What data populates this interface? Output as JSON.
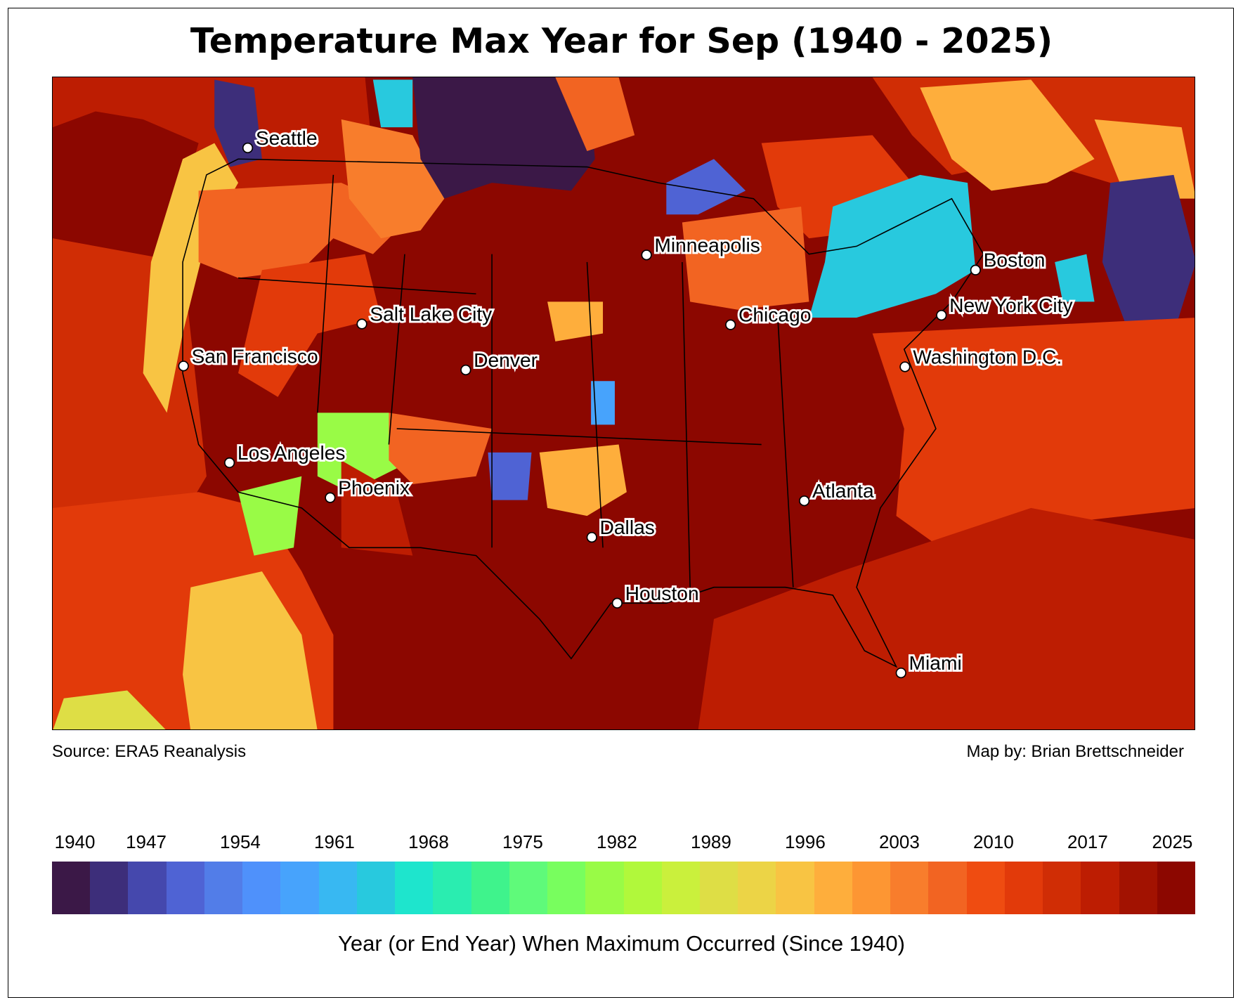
{
  "title": "Temperature Max Year for Sep (1940 - 2025)",
  "source": "Source: ERA5 Reanalysis",
  "credit": "Map by: Brian Brettschneider",
  "cities": [
    {
      "id": "seattle",
      "name": "Seattle"
    },
    {
      "id": "minneapolis",
      "name": "Minneapolis"
    },
    {
      "id": "boston",
      "name": "Boston"
    },
    {
      "id": "salt-lake-city",
      "name": "Salt Lake City"
    },
    {
      "id": "chicago",
      "name": "Chicago"
    },
    {
      "id": "new-york-city",
      "name": "New York City"
    },
    {
      "id": "san-francisco",
      "name": "San Francisco"
    },
    {
      "id": "denver",
      "name": "Denver"
    },
    {
      "id": "washington-dc",
      "name": "Washington D.C."
    },
    {
      "id": "los-angeles",
      "name": "Los Angeles"
    },
    {
      "id": "phoenix",
      "name": "Phoenix"
    },
    {
      "id": "atlanta",
      "name": "Atlanta"
    },
    {
      "id": "dallas",
      "name": "Dallas"
    },
    {
      "id": "houston",
      "name": "Houston"
    },
    {
      "id": "miami",
      "name": "Miami"
    }
  ],
  "colorbar": {
    "label": "Year (or End Year) When Maximum Occurred (Since 1940)",
    "range": [
      1940,
      2025
    ],
    "ticks": [
      "1940",
      "1947",
      "1954",
      "1961",
      "1968",
      "1975",
      "1982",
      "1989",
      "1996",
      "2003",
      "2010",
      "2017",
      "2025"
    ],
    "colors": [
      "#3b1847",
      "#3d2e7a",
      "#4548ad",
      "#4f63d4",
      "#527de8",
      "#4f91fb",
      "#47a3fc",
      "#38b8f2",
      "#28c9de",
      "#1ee5cd",
      "#2aedb0",
      "#3ff38c",
      "#5ffa7a",
      "#78fe5e",
      "#99fb46",
      "#b1f83b",
      "#caf03c",
      "#dede45",
      "#ecd446",
      "#f8c443",
      "#feae3c",
      "#fd9633",
      "#f87d2c",
      "#f26422",
      "#ef4c11",
      "#e23a0a",
      "#d02d05",
      "#bd1d02",
      "#a21201",
      "#8c0700"
    ]
  }
}
